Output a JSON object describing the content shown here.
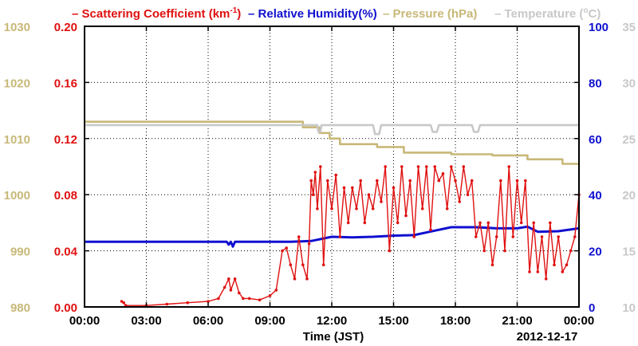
{
  "chart_data": {
    "type": "line",
    "legend": [
      {
        "name": "Scattering Coefficient (km",
        "sup": "-1",
        "suffix": ")",
        "color": "#e01010"
      },
      {
        "name": "Relative Humidity(%)",
        "sup": "",
        "suffix": "",
        "color": "#1010d0"
      },
      {
        "name": "Pressure (hPa)",
        "sup": "",
        "suffix": "",
        "color": "#c8b878"
      },
      {
        "name": "Temperature (",
        "sup": "o",
        "suffix": "C)",
        "color": "#c8c8c8"
      }
    ],
    "xlabel": "Time (JST)",
    "date_label": "2012-12-17",
    "x_ticks": [
      "00:00",
      "03:00",
      "06:00",
      "09:00",
      "12:00",
      "15:00",
      "18:00",
      "21:00",
      "00:00"
    ],
    "x_range_hours": [
      0,
      24
    ],
    "axes": {
      "pressure": {
        "range": [
          980,
          1030
        ],
        "ticks": [
          "980",
          "990",
          "1000",
          "1010",
          "1020",
          "1030"
        ],
        "color": "#c8b878"
      },
      "scattering": {
        "range": [
          0,
          0.2
        ],
        "ticks": [
          "0.00",
          "0.04",
          "0.08",
          "0.12",
          "0.16",
          "0.20"
        ],
        "color": "#e01010"
      },
      "humidity": {
        "range": [
          0,
          100
        ],
        "ticks": [
          "0",
          "20",
          "40",
          "60",
          "80",
          "100"
        ],
        "color": "#1010d0"
      },
      "temperature": {
        "range": [
          10,
          35
        ],
        "ticks": [
          "10",
          "15",
          "20",
          "25",
          "30",
          "35"
        ],
        "color": "#c8c8c8"
      }
    },
    "series": [
      {
        "name": "Pressure (hPa)",
        "axis": "pressure",
        "color": "#c8b878",
        "step": true,
        "x": [
          0,
          10.3,
          10.6,
          11.4,
          11.9,
          12.4,
          14.2,
          15.5,
          17.8,
          19.8,
          21.5,
          23.2,
          24
        ],
        "y": [
          1013,
          1013,
          1012,
          1011,
          1010,
          1009,
          1008.5,
          1007.5,
          1007.2,
          1007,
          1006.3,
          1005.5,
          1005.5
        ]
      },
      {
        "name": "Temperature (C)",
        "axis": "temperature",
        "color": "#c8c8c8",
        "x": [
          0,
          11.3,
          11.35,
          11.45,
          11.5,
          14.0,
          14.1,
          14.3,
          14.4,
          16.8,
          16.9,
          17.1,
          17.2,
          18.8,
          18.9,
          19.1,
          19.2,
          24
        ],
        "y": [
          26.2,
          26.2,
          25.6,
          25.6,
          26.2,
          26.2,
          25.4,
          25.4,
          26.2,
          26.2,
          25.6,
          25.6,
          26.2,
          26.2,
          25.6,
          25.6,
          26.2,
          26.2
        ]
      },
      {
        "name": "Relative Humidity(%)",
        "axis": "humidity",
        "color": "#1010d0",
        "x": [
          0,
          6.9,
          7.0,
          7.1,
          7.2,
          7.3,
          10.0,
          11.0,
          12.0,
          13.0,
          14.0,
          15.0,
          16.0,
          17.0,
          17.8,
          18.0,
          19.0,
          20.0,
          21.0,
          21.5,
          22.0,
          23.0,
          24.0
        ],
        "y": [
          23.2,
          23.2,
          22.2,
          23.2,
          21.5,
          23.2,
          23.2,
          23.5,
          25,
          24.8,
          25,
          25.4,
          25.6,
          27.2,
          28.4,
          28.4,
          28.4,
          28,
          28,
          28.6,
          26.8,
          27,
          28
        ]
      },
      {
        "name": "Scattering Coefficient (km-1)",
        "axis": "scattering",
        "color": "#e01010",
        "x": [
          1.8,
          1.9,
          2.0,
          3.0,
          4.0,
          5.0,
          6.0,
          6.5,
          6.8,
          7.0,
          7.1,
          7.3,
          7.5,
          7.7,
          8.0,
          8.5,
          9.0,
          9.3,
          9.6,
          9.8,
          10.0,
          10.2,
          10.4,
          10.6,
          10.8,
          10.9,
          11.0,
          11.1,
          11.2,
          11.3,
          11.45,
          11.6,
          11.8,
          12.0,
          12.2,
          12.4,
          12.6,
          12.8,
          13.0,
          13.2,
          13.4,
          13.6,
          13.8,
          14.0,
          14.2,
          14.4,
          14.6,
          14.8,
          15.0,
          15.2,
          15.4,
          15.6,
          15.8,
          16.0,
          16.2,
          16.4,
          16.6,
          16.8,
          17.0,
          17.2,
          17.4,
          17.6,
          17.8,
          18.0,
          18.2,
          18.4,
          18.6,
          18.8,
          19.0,
          19.2,
          19.4,
          19.6,
          19.8,
          20.0,
          20.2,
          20.4,
          20.6,
          20.8,
          21.0,
          21.2,
          21.4,
          21.6,
          21.8,
          22.0,
          22.2,
          22.4,
          22.6,
          22.8,
          23.0,
          23.2,
          23.4,
          23.6,
          23.8,
          24.0
        ],
        "y": [
          0.004,
          0.003,
          0.001,
          0.001,
          0.002,
          0.003,
          0.004,
          0.006,
          0.014,
          0.02,
          0.012,
          0.02,
          0.01,
          0.006,
          0.006,
          0.005,
          0.008,
          0.012,
          0.04,
          0.042,
          0.03,
          0.02,
          0.05,
          0.03,
          0.02,
          0.045,
          0.09,
          0.08,
          0.096,
          0.07,
          0.1,
          0.03,
          0.09,
          0.07,
          0.094,
          0.05,
          0.085,
          0.06,
          0.085,
          0.07,
          0.09,
          0.06,
          0.08,
          0.07,
          0.09,
          0.075,
          0.1,
          0.04,
          0.085,
          0.06,
          0.1,
          0.065,
          0.09,
          0.05,
          0.1,
          0.07,
          0.1,
          0.055,
          0.1,
          0.09,
          0.095,
          0.07,
          0.1,
          0.09,
          0.075,
          0.1,
          0.08,
          0.09,
          0.05,
          0.06,
          0.04,
          0.06,
          0.03,
          0.05,
          0.09,
          0.04,
          0.1,
          0.05,
          0.09,
          0.06,
          0.09,
          0.025,
          0.06,
          0.025,
          0.05,
          0.02,
          0.06,
          0.03,
          0.05,
          0.025,
          0.03,
          0.04,
          0.05,
          0.08
        ]
      }
    ]
  }
}
